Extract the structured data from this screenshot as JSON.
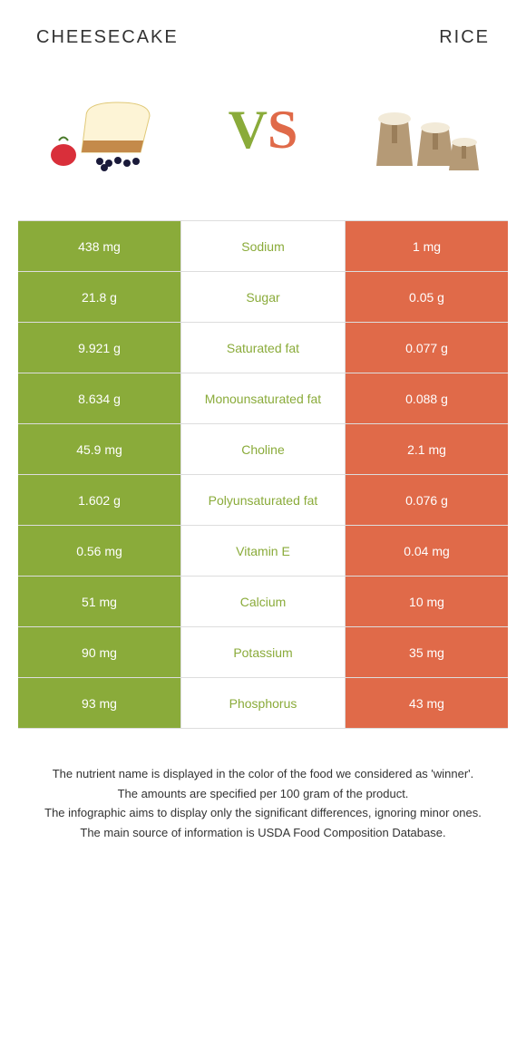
{
  "header": {
    "left": "Cheesecake",
    "right": "Rice"
  },
  "vs": {
    "v": "V",
    "s": "S"
  },
  "colors": {
    "left_bg": "#8aab3a",
    "right_bg": "#e06a49",
    "left_text": "#8aab3a",
    "right_text": "#e06a49"
  },
  "rows": [
    {
      "left": "438 mg",
      "label": "Sodium",
      "right": "1 mg",
      "winner": "left"
    },
    {
      "left": "21.8 g",
      "label": "Sugar",
      "right": "0.05 g",
      "winner": "left"
    },
    {
      "left": "9.921 g",
      "label": "Saturated fat",
      "right": "0.077 g",
      "winner": "left"
    },
    {
      "left": "8.634 g",
      "label": "Monounsaturated fat",
      "right": "0.088 g",
      "winner": "left"
    },
    {
      "left": "45.9 mg",
      "label": "Choline",
      "right": "2.1 mg",
      "winner": "left"
    },
    {
      "left": "1.602 g",
      "label": "Polyunsaturated fat",
      "right": "0.076 g",
      "winner": "left"
    },
    {
      "left": "0.56 mg",
      "label": "Vitamin E",
      "right": "0.04 mg",
      "winner": "left"
    },
    {
      "left": "51 mg",
      "label": "Calcium",
      "right": "10 mg",
      "winner": "left"
    },
    {
      "left": "90 mg",
      "label": "Potassium",
      "right": "35 mg",
      "winner": "left"
    },
    {
      "left": "93 mg",
      "label": "Phosphorus",
      "right": "43 mg",
      "winner": "left"
    }
  ],
  "footer": {
    "l1": "The nutrient name is displayed in the color of the food we considered as 'winner'.",
    "l2": "The amounts are specified per 100 gram of the product.",
    "l3": "The infographic aims to display only the significant differences, ignoring minor ones.",
    "l4": "The main source of information is USDA Food Composition Database."
  }
}
